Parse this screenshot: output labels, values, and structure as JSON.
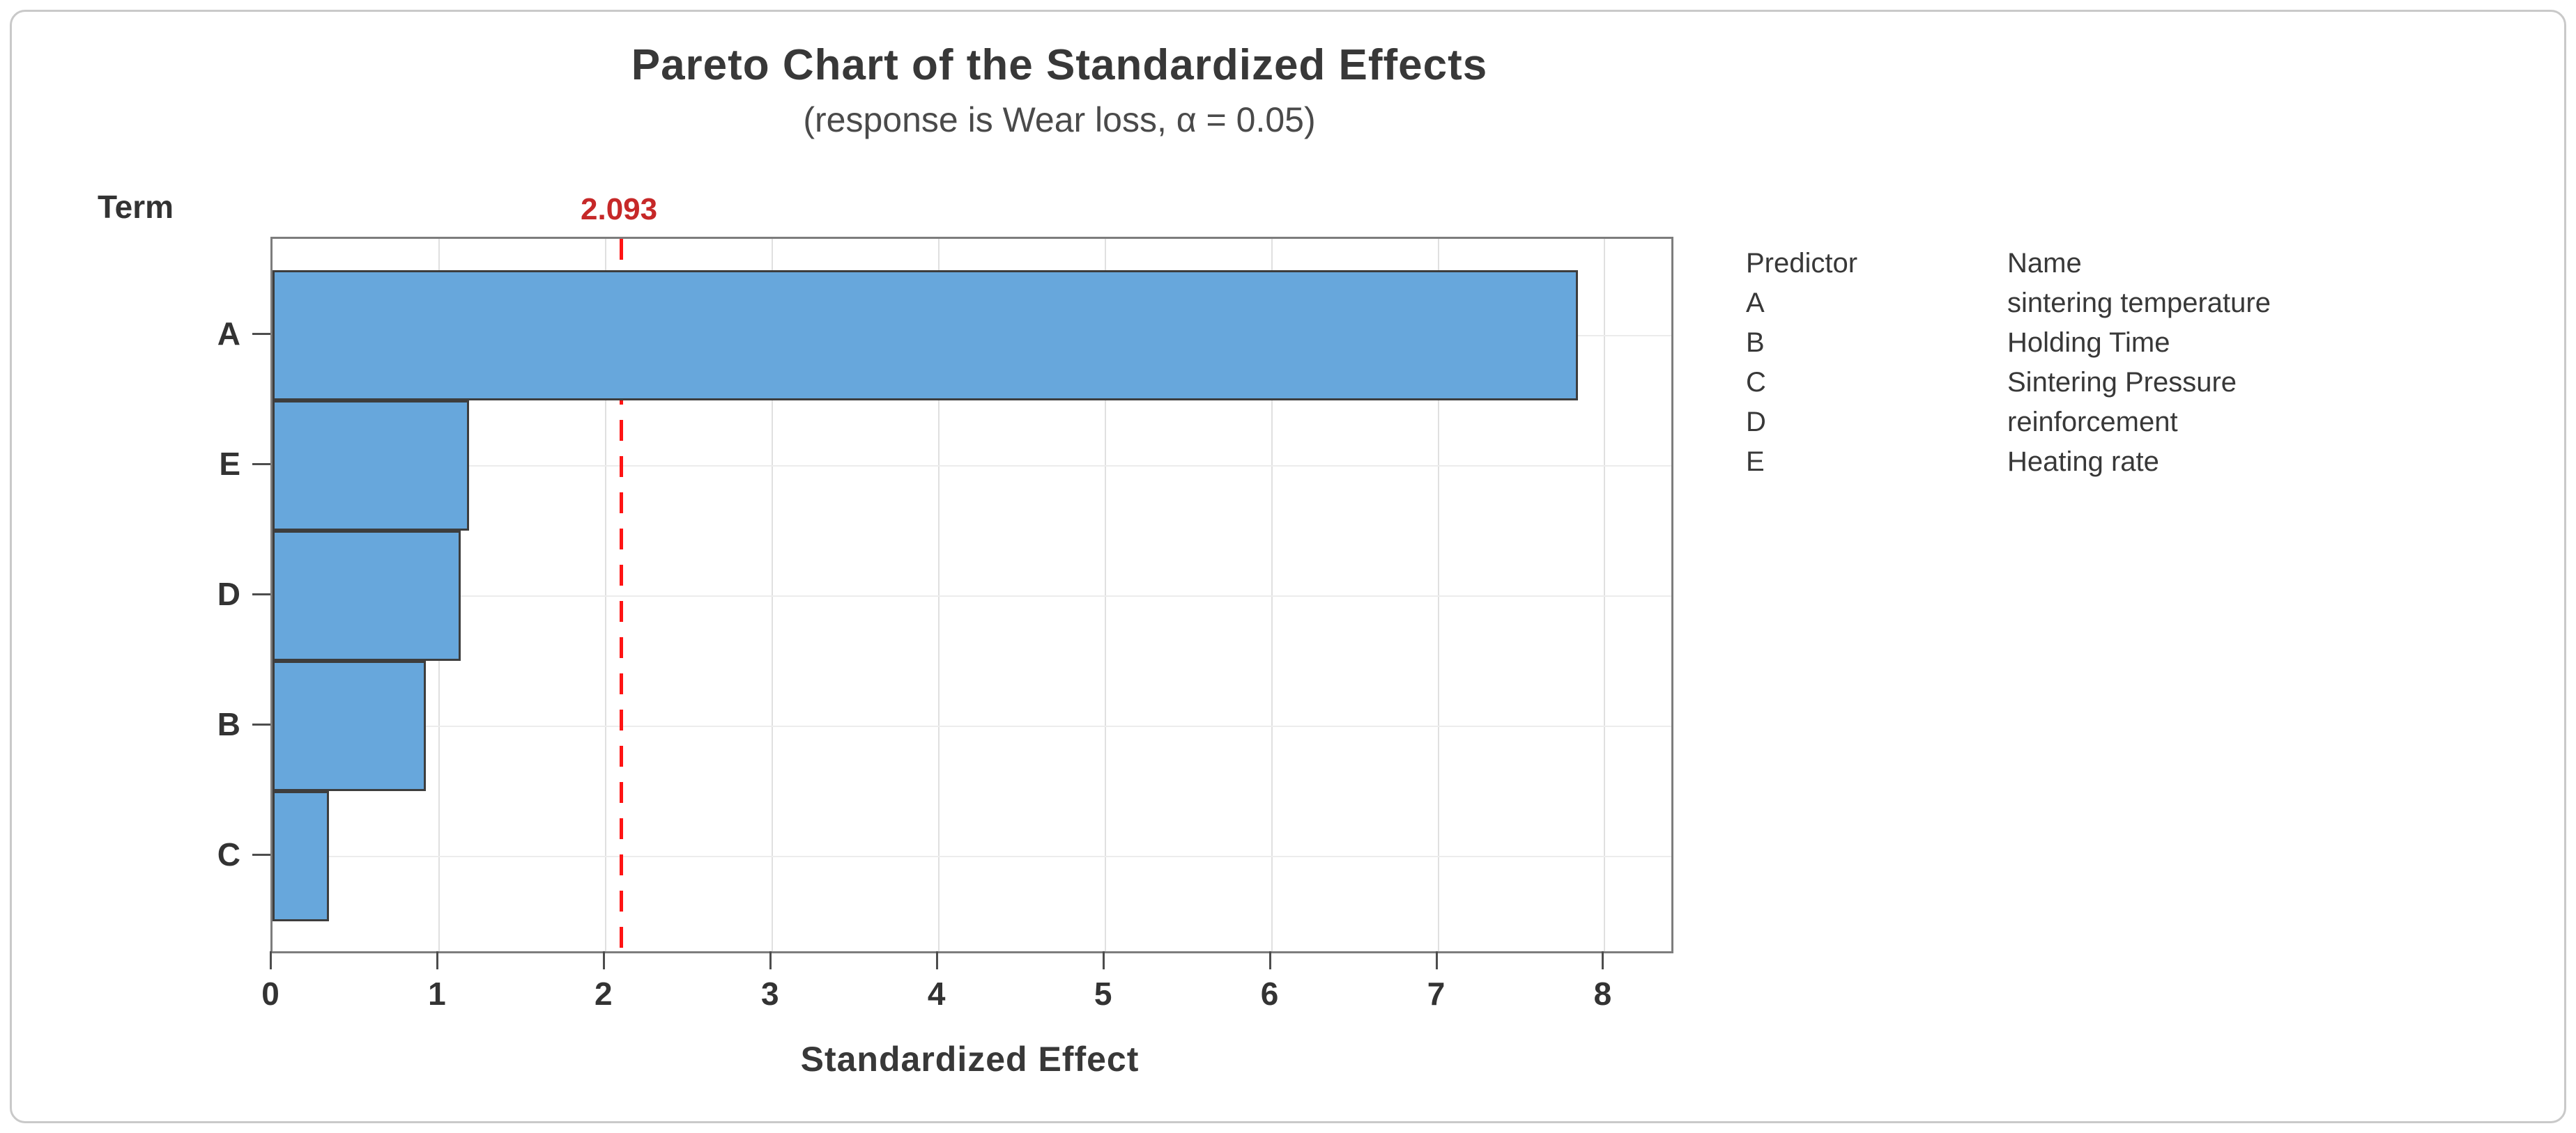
{
  "title": "Pareto Chart of the Standardized Effects",
  "subtitle": "(response is Wear loss, α = 0.05)",
  "term_label": "Term",
  "axis_title": "Standardized Effect",
  "reference_line_label": "2.093",
  "x_tick_labels": [
    "0",
    "1",
    "2",
    "3",
    "4",
    "5",
    "6",
    "7",
    "8"
  ],
  "chart_data": {
    "type": "bar",
    "orientation": "horizontal",
    "title": "Pareto Chart of the Standardized Effects",
    "subtitle": "(response is Wear loss, α = 0.05)",
    "response": "Wear loss",
    "alpha": 0.05,
    "categories": [
      "A",
      "E",
      "D",
      "B",
      "C"
    ],
    "values": [
      7.84,
      1.18,
      1.13,
      0.92,
      0.34
    ],
    "xlabel": "Standardized Effect",
    "ylabel": "Term",
    "xlim": [
      0,
      8.4
    ],
    "x_ticks": [
      0,
      1,
      2,
      3,
      4,
      5,
      6,
      7,
      8
    ],
    "reference_line": 2.093,
    "grid": true,
    "legend_position": "right",
    "bar_fill_color": "#67A7DC",
    "bar_border_color": "#3d3d3d",
    "reference_line_color": "#ff1414",
    "reference_label_color": "#c62828",
    "gridline_color": "#e0e0e0",
    "plot_border_color": "#7d7d7d"
  },
  "legend": {
    "headers": [
      "Predictor",
      "Name"
    ],
    "rows": [
      {
        "predictor": "A",
        "name": "sintering temperature"
      },
      {
        "predictor": "B",
        "name": "Holding Time"
      },
      {
        "predictor": "C",
        "name": "Sintering Pressure"
      },
      {
        "predictor": "D",
        "name": "reinforcement"
      },
      {
        "predictor": "E",
        "name": "Heating rate"
      }
    ]
  }
}
